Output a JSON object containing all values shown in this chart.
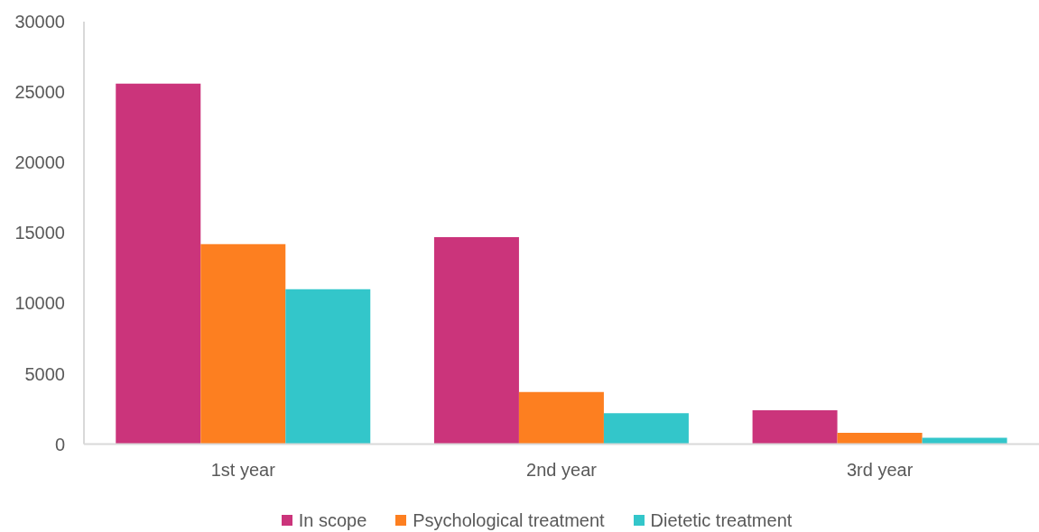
{
  "chart_data": {
    "type": "bar",
    "categories": [
      "1st year",
      "2nd year",
      "3rd year"
    ],
    "series": [
      {
        "name": "In scope",
        "color": "#cb347b",
        "values": [
          25600,
          14700,
          2400
        ]
      },
      {
        "name": "Psychological treatment",
        "color": "#fd7f20",
        "values": [
          14200,
          3700,
          800
        ]
      },
      {
        "name": "Dietetic treatment",
        "color": "#33c6ca",
        "values": [
          11000,
          2200,
          450
        ]
      }
    ],
    "ylim": [
      0,
      30000
    ],
    "yticks": [
      0,
      5000,
      10000,
      15000,
      20000,
      25000,
      30000
    ],
    "legend": "bottom"
  }
}
